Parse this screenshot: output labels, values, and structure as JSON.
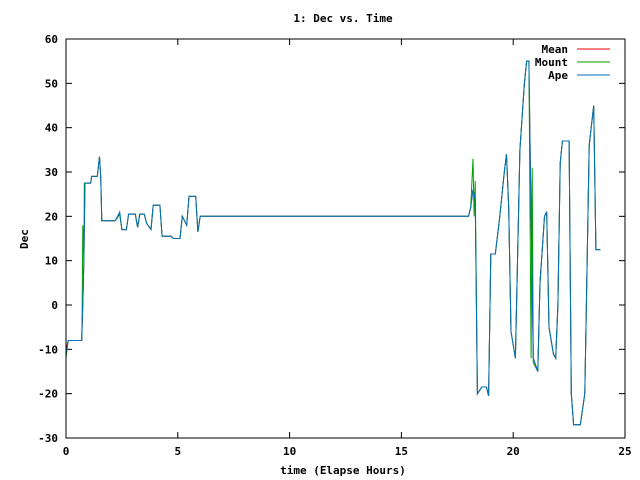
{
  "chart_data": {
    "type": "line",
    "title": "1: Dec vs. Time",
    "xlabel": "time (Elapse Hours)",
    "ylabel": "Dec",
    "xlim": [
      0,
      25
    ],
    "ylim": [
      -30,
      60
    ],
    "xticks": [
      0,
      5,
      10,
      15,
      20,
      25
    ],
    "yticks": [
      -30,
      -20,
      -10,
      0,
      10,
      20,
      30,
      40,
      50,
      60
    ],
    "grid": false,
    "legend_position": "top-right",
    "series": [
      {
        "name": "Mean",
        "color": "#ff0000",
        "points": [
          [
            0.0,
            -10.0
          ],
          [
            0.1,
            -8.0
          ],
          [
            0.7,
            -8.0
          ],
          [
            0.75,
            0.0
          ],
          [
            0.8,
            10.0
          ],
          [
            0.85,
            27.5
          ],
          [
            1.1,
            27.5
          ],
          [
            1.15,
            29.0
          ],
          [
            1.4,
            29.0
          ],
          [
            1.5,
            33.5
          ],
          [
            1.55,
            29.0
          ],
          [
            1.6,
            19.0
          ],
          [
            2.2,
            19.0
          ],
          [
            2.4,
            20.5
          ],
          [
            2.5,
            17.0
          ],
          [
            2.7,
            17.0
          ],
          [
            2.8,
            20.5
          ],
          [
            3.1,
            20.5
          ],
          [
            3.2,
            17.5
          ],
          [
            3.3,
            20.5
          ],
          [
            3.5,
            20.5
          ],
          [
            3.6,
            18.5
          ],
          [
            3.8,
            17.0
          ],
          [
            3.9,
            22.5
          ],
          [
            4.2,
            22.5
          ],
          [
            4.3,
            15.5
          ],
          [
            4.7,
            15.5
          ],
          [
            4.8,
            15.0
          ],
          [
            5.1,
            15.0
          ],
          [
            5.2,
            20.0
          ],
          [
            5.4,
            18.0
          ],
          [
            5.5,
            24.5
          ],
          [
            5.8,
            24.5
          ],
          [
            5.9,
            16.5
          ],
          [
            6.0,
            20.0
          ],
          [
            18.0,
            20.0
          ],
          [
            18.1,
            22.0
          ],
          [
            18.2,
            26.0
          ],
          [
            18.3,
            24.0
          ],
          [
            18.4,
            -20.0
          ],
          [
            18.6,
            -18.5
          ],
          [
            18.8,
            -18.5
          ],
          [
            18.9,
            -20.5
          ],
          [
            19.0,
            11.5
          ],
          [
            19.2,
            11.5
          ],
          [
            19.4,
            20.0
          ],
          [
            19.6,
            30.0
          ],
          [
            19.7,
            34.0
          ],
          [
            19.8,
            22.0
          ],
          [
            19.9,
            -6.0
          ],
          [
            20.1,
            -12.0
          ],
          [
            20.3,
            35.0
          ],
          [
            20.5,
            50.0
          ],
          [
            20.6,
            55.0
          ],
          [
            20.7,
            55.0
          ],
          [
            20.8,
            20.0
          ],
          [
            20.9,
            -12.0
          ],
          [
            21.1,
            -15.0
          ],
          [
            21.2,
            5.0
          ],
          [
            21.4,
            20.0
          ],
          [
            21.5,
            21.0
          ],
          [
            21.6,
            -5.0
          ],
          [
            21.8,
            -11.0
          ],
          [
            21.9,
            -12.0
          ],
          [
            22.0,
            0.0
          ],
          [
            22.1,
            32.0
          ],
          [
            22.2,
            37.0
          ],
          [
            22.5,
            37.0
          ],
          [
            22.6,
            -20.0
          ],
          [
            22.7,
            -27.0
          ],
          [
            23.0,
            -27.0
          ],
          [
            23.2,
            -20.0
          ],
          [
            23.4,
            36.0
          ],
          [
            23.6,
            45.0
          ],
          [
            23.7,
            12.5
          ],
          [
            23.9,
            12.5
          ]
        ]
      },
      {
        "name": "Mount",
        "color": "#00a000",
        "points": [
          [
            0.0,
            -12.0
          ],
          [
            0.1,
            -8.0
          ],
          [
            0.7,
            -8.0
          ],
          [
            0.72,
            -3.0
          ],
          [
            0.75,
            18.0
          ],
          [
            0.8,
            10.0
          ],
          [
            0.82,
            27.5
          ],
          [
            1.1,
            27.5
          ],
          [
            1.15,
            29.0
          ],
          [
            1.4,
            29.0
          ],
          [
            1.5,
            33.5
          ],
          [
            1.55,
            29.0
          ],
          [
            1.6,
            19.0
          ],
          [
            2.2,
            19.0
          ],
          [
            2.4,
            20.5
          ],
          [
            2.5,
            17.0
          ],
          [
            2.7,
            17.0
          ],
          [
            2.8,
            20.5
          ],
          [
            3.1,
            20.5
          ],
          [
            3.2,
            17.5
          ],
          [
            3.3,
            20.5
          ],
          [
            3.5,
            20.5
          ],
          [
            3.6,
            18.5
          ],
          [
            3.8,
            17.0
          ],
          [
            3.9,
            22.5
          ],
          [
            4.2,
            22.5
          ],
          [
            4.3,
            15.5
          ],
          [
            4.7,
            15.5
          ],
          [
            4.8,
            15.0
          ],
          [
            5.1,
            15.0
          ],
          [
            5.2,
            20.0
          ],
          [
            5.4,
            18.0
          ],
          [
            5.5,
            24.5
          ],
          [
            5.8,
            24.5
          ],
          [
            5.9,
            16.5
          ],
          [
            6.0,
            20.0
          ],
          [
            18.0,
            20.0
          ],
          [
            18.1,
            22.0
          ],
          [
            18.2,
            33.0
          ],
          [
            18.25,
            20.0
          ],
          [
            18.3,
            28.0
          ],
          [
            18.4,
            -20.0
          ],
          [
            18.6,
            -18.5
          ],
          [
            18.8,
            -18.5
          ],
          [
            18.9,
            -20.5
          ],
          [
            19.0,
            11.5
          ],
          [
            19.2,
            11.5
          ],
          [
            19.4,
            20.0
          ],
          [
            19.6,
            30.0
          ],
          [
            19.7,
            34.0
          ],
          [
            19.8,
            22.0
          ],
          [
            19.9,
            -6.0
          ],
          [
            20.1,
            -12.0
          ],
          [
            20.3,
            35.0
          ],
          [
            20.5,
            50.0
          ],
          [
            20.6,
            55.0
          ],
          [
            20.7,
            55.0
          ],
          [
            20.8,
            -12.0
          ],
          [
            20.85,
            31.0
          ],
          [
            20.9,
            -13.0
          ],
          [
            21.1,
            -15.0
          ],
          [
            21.2,
            5.0
          ],
          [
            21.4,
            20.0
          ],
          [
            21.5,
            21.0
          ],
          [
            21.6,
            -5.0
          ],
          [
            21.8,
            -11.0
          ],
          [
            21.9,
            -12.0
          ],
          [
            22.0,
            0.0
          ],
          [
            22.1,
            32.0
          ],
          [
            22.2,
            37.0
          ],
          [
            22.5,
            37.0
          ],
          [
            22.6,
            -20.0
          ],
          [
            22.7,
            -27.0
          ],
          [
            23.0,
            -27.0
          ],
          [
            23.2,
            -20.0
          ],
          [
            23.4,
            36.0
          ],
          [
            23.6,
            45.0
          ],
          [
            23.7,
            12.5
          ],
          [
            23.9,
            12.5
          ]
        ]
      },
      {
        "name": "Ape",
        "color": "#0070c0",
        "points": [
          [
            0.0,
            -11.0
          ],
          [
            0.1,
            -8.0
          ],
          [
            0.7,
            -8.0
          ],
          [
            0.75,
            0.0
          ],
          [
            0.8,
            10.0
          ],
          [
            0.85,
            27.5
          ],
          [
            1.1,
            27.5
          ],
          [
            1.15,
            29.0
          ],
          [
            1.4,
            29.0
          ],
          [
            1.5,
            33.5
          ],
          [
            1.55,
            29.0
          ],
          [
            1.6,
            19.0
          ],
          [
            2.2,
            19.0
          ],
          [
            2.4,
            21.0
          ],
          [
            2.5,
            17.0
          ],
          [
            2.7,
            17.0
          ],
          [
            2.8,
            20.5
          ],
          [
            3.1,
            20.5
          ],
          [
            3.2,
            17.5
          ],
          [
            3.3,
            20.5
          ],
          [
            3.5,
            20.5
          ],
          [
            3.6,
            18.5
          ],
          [
            3.8,
            17.0
          ],
          [
            3.9,
            22.5
          ],
          [
            4.2,
            22.5
          ],
          [
            4.3,
            15.5
          ],
          [
            4.7,
            15.5
          ],
          [
            4.8,
            15.0
          ],
          [
            5.1,
            15.0
          ],
          [
            5.2,
            20.0
          ],
          [
            5.4,
            18.0
          ],
          [
            5.5,
            24.5
          ],
          [
            5.8,
            24.5
          ],
          [
            5.9,
            16.5
          ],
          [
            6.0,
            20.0
          ],
          [
            18.0,
            20.0
          ],
          [
            18.1,
            22.0
          ],
          [
            18.2,
            26.0
          ],
          [
            18.3,
            24.0
          ],
          [
            18.4,
            -20.0
          ],
          [
            18.6,
            -18.5
          ],
          [
            18.8,
            -18.5
          ],
          [
            18.9,
            -20.5
          ],
          [
            19.0,
            11.5
          ],
          [
            19.2,
            11.5
          ],
          [
            19.4,
            20.0
          ],
          [
            19.6,
            30.0
          ],
          [
            19.7,
            34.0
          ],
          [
            19.8,
            22.0
          ],
          [
            19.9,
            -6.0
          ],
          [
            20.1,
            -12.0
          ],
          [
            20.3,
            35.0
          ],
          [
            20.5,
            50.0
          ],
          [
            20.6,
            55.0
          ],
          [
            20.7,
            55.0
          ],
          [
            20.8,
            20.0
          ],
          [
            20.9,
            -12.0
          ],
          [
            21.1,
            -15.0
          ],
          [
            21.2,
            5.0
          ],
          [
            21.4,
            20.0
          ],
          [
            21.5,
            21.0
          ],
          [
            21.6,
            -5.0
          ],
          [
            21.8,
            -11.0
          ],
          [
            21.9,
            -12.0
          ],
          [
            22.0,
            0.0
          ],
          [
            22.1,
            32.0
          ],
          [
            22.2,
            37.0
          ],
          [
            22.5,
            37.0
          ],
          [
            22.6,
            -20.0
          ],
          [
            22.7,
            -27.0
          ],
          [
            23.0,
            -27.0
          ],
          [
            23.2,
            -20.0
          ],
          [
            23.4,
            36.0
          ],
          [
            23.6,
            45.0
          ],
          [
            23.7,
            12.5
          ],
          [
            23.9,
            12.5
          ]
        ]
      }
    ]
  }
}
